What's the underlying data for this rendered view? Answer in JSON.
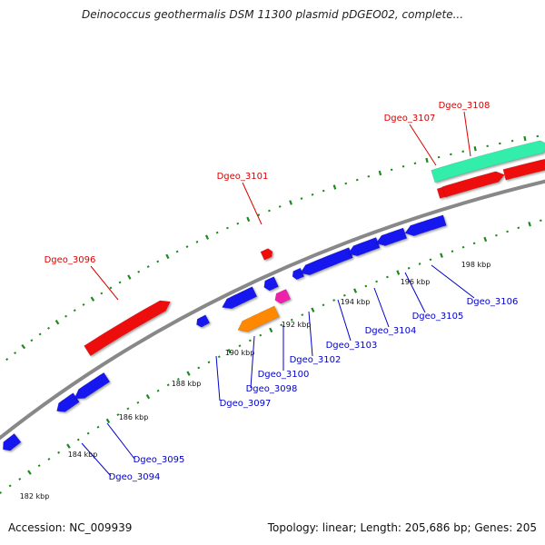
{
  "title": "Deinococcus geothermalis DSM 11300 plasmid pDGEO02, complete...",
  "footer": {
    "accession_label": "Accession:",
    "accession": "NC_009939",
    "topology_label": "Topology:",
    "topology": "linear",
    "length_label": "Length:",
    "length": "205,686 bp",
    "genes_label": "Genes:",
    "genes": "205",
    "accession_text": "Accession: NC_009939",
    "summary_text": "Topology: linear; Length: 205,686 bp; Genes: 205"
  },
  "colors": {
    "backbone": "#888888",
    "tick": "#1a8a1a",
    "forward_gene": "#ee1111",
    "reverse_gene": "#1515ee",
    "rrna": "#ff8800",
    "trna": "#ee22aa",
    "region": "#33eeaa",
    "forward_label": "#dd0000",
    "reverse_label": "#0000cc"
  },
  "ticks": [
    "182 kbp",
    "184 kbp",
    "186 kbp",
    "188 kbp",
    "190 kbp",
    "192 kbp",
    "194 kbp",
    "196 kbp",
    "198 kbp"
  ],
  "forward_labels": [
    "Dgeo_3096",
    "Dgeo_3101",
    "Dgeo_3107",
    "Dgeo_3108"
  ],
  "reverse_labels": [
    "Dgeo_3094",
    "Dgeo_3095",
    "Dgeo_3097",
    "Dgeo_3098",
    "Dgeo_3100",
    "Dgeo_3102",
    "Dgeo_3103",
    "Dgeo_3104",
    "Dgeo_3105",
    "Dgeo_3106"
  ]
}
